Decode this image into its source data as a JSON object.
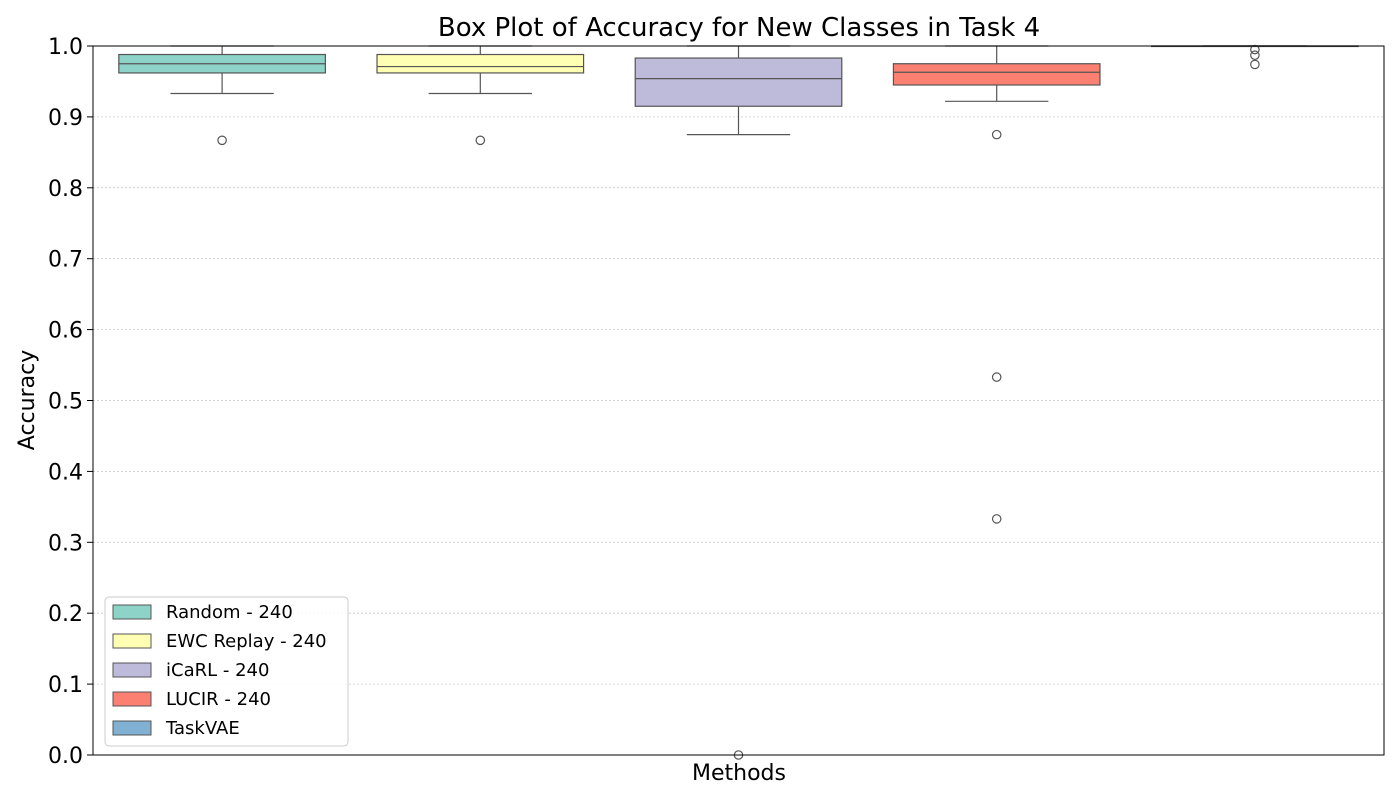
{
  "chart_data": {
    "type": "box",
    "title": "Box Plot of Accuracy for New Classes in Task 4",
    "xlabel": "Methods",
    "ylabel": "Accuracy",
    "ylim": [
      0.0,
      1.0
    ],
    "yticks": [
      "0.0",
      "0.1",
      "0.2",
      "0.3",
      "0.4",
      "0.5",
      "0.6",
      "0.7",
      "0.8",
      "0.9",
      "1.0"
    ],
    "grid": "horizontal dotted",
    "legend_position": "lower-left",
    "series": [
      {
        "name": "Random - 240",
        "color": "#8dd3c7",
        "whisker_low": 0.933,
        "q1": 0.962,
        "median": 0.975,
        "q3": 0.988,
        "whisker_high": 1.0,
        "outliers": [
          0.867
        ]
      },
      {
        "name": "EWC Replay - 240",
        "color": "#ffffb3",
        "whisker_low": 0.933,
        "q1": 0.962,
        "median": 0.971,
        "q3": 0.988,
        "whisker_high": 1.0,
        "outliers": [
          0.867
        ]
      },
      {
        "name": "iCaRL - 240",
        "color": "#bebada",
        "whisker_low": 0.875,
        "q1": 0.915,
        "median": 0.954,
        "q3": 0.983,
        "whisker_high": 1.0,
        "outliers": [
          0.0
        ]
      },
      {
        "name": "LUCIR - 240",
        "color": "#fb8072",
        "whisker_low": 0.922,
        "q1": 0.945,
        "median": 0.963,
        "q3": 0.975,
        "whisker_high": 1.0,
        "outliers": [
          0.875,
          0.533,
          0.333
        ]
      },
      {
        "name": "TaskVAE",
        "color": "#80b1d3",
        "whisker_low": 1.0,
        "q1": 1.0,
        "median": 1.0,
        "q3": 1.0,
        "whisker_high": 1.0,
        "outliers": [
          0.974,
          0.987,
          0.995
        ]
      }
    ]
  }
}
